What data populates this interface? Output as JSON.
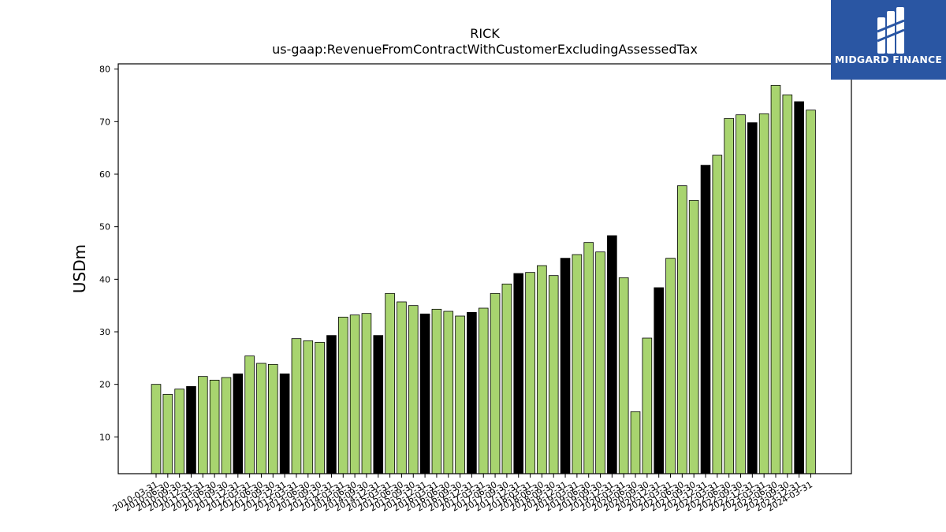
{
  "chart_data": {
    "type": "bar",
    "title": "RICK",
    "subtitle": "us-gaap:RevenueFromContractWithCustomerExcludingAssessedTax",
    "xlabel": "",
    "ylabel": "USDm",
    "ylim": [
      3,
      81
    ],
    "yticks": [
      10,
      20,
      30,
      40,
      50,
      60,
      70,
      80
    ],
    "grid": false,
    "colors": {
      "quarter": "#a8d46f",
      "year_end": "#000000",
      "edge": "#000000"
    },
    "categories": [
      "2010-03-31",
      "2010-06-30",
      "2010-09-30",
      "2010-12-31",
      "2011-03-31",
      "2011-06-30",
      "2011-09-30",
      "2011-12-31",
      "2012-03-31",
      "2012-06-30",
      "2012-09-30",
      "2012-12-31",
      "2013-03-31",
      "2013-06-30",
      "2013-09-30",
      "2013-12-31",
      "2014-03-31",
      "2014-06-30",
      "2014-09-30",
      "2014-12-31",
      "2015-03-31",
      "2015-06-30",
      "2015-09-30",
      "2015-12-31",
      "2016-03-31",
      "2016-06-30",
      "2016-09-30",
      "2016-12-31",
      "2017-03-31",
      "2017-06-30",
      "2017-09-30",
      "2017-12-31",
      "2018-03-31",
      "2018-06-30",
      "2018-09-30",
      "2018-12-31",
      "2019-03-31",
      "2019-06-30",
      "2019-09-30",
      "2019-12-31",
      "2020-03-31",
      "2020-06-30",
      "2020-09-30",
      "2020-12-31",
      "2021-03-31",
      "2021-06-30",
      "2021-09-30",
      "2021-12-31",
      "2022-03-31",
      "2022-06-30",
      "2022-09-30",
      "2022-12-31",
      "2023-03-31",
      "2023-06-30",
      "2023-09-30",
      "2023-12-31",
      "2024-03-31"
    ],
    "values": [
      20.0,
      18.1,
      19.1,
      19.6,
      21.5,
      20.8,
      21.3,
      22.0,
      25.4,
      24.0,
      23.8,
      22.0,
      28.7,
      28.3,
      28.0,
      29.3,
      32.8,
      33.2,
      33.5,
      29.3,
      37.3,
      35.7,
      35.0,
      33.4,
      34.3,
      33.9,
      33.0,
      33.7,
      34.5,
      37.3,
      39.1,
      41.1,
      41.3,
      42.6,
      40.7,
      44.0,
      44.7,
      47.0,
      45.2,
      48.3,
      40.3,
      14.8,
      28.8,
      38.4,
      44.0,
      57.8,
      55.0,
      61.7,
      63.6,
      70.6,
      71.3,
      69.8,
      71.5,
      76.9,
      75.1,
      73.8,
      72.2
    ],
    "year_end": [
      false,
      false,
      false,
      true,
      false,
      false,
      false,
      true,
      false,
      false,
      false,
      true,
      false,
      false,
      false,
      true,
      false,
      false,
      false,
      true,
      false,
      false,
      false,
      true,
      false,
      false,
      false,
      true,
      false,
      false,
      false,
      true,
      false,
      false,
      false,
      true,
      false,
      false,
      false,
      true,
      false,
      false,
      false,
      true,
      false,
      false,
      false,
      true,
      false,
      false,
      false,
      true,
      false,
      false,
      false,
      true,
      false
    ]
  },
  "logo": {
    "text": "MIDGARD FINANCE",
    "bg": "#2a56a3"
  }
}
